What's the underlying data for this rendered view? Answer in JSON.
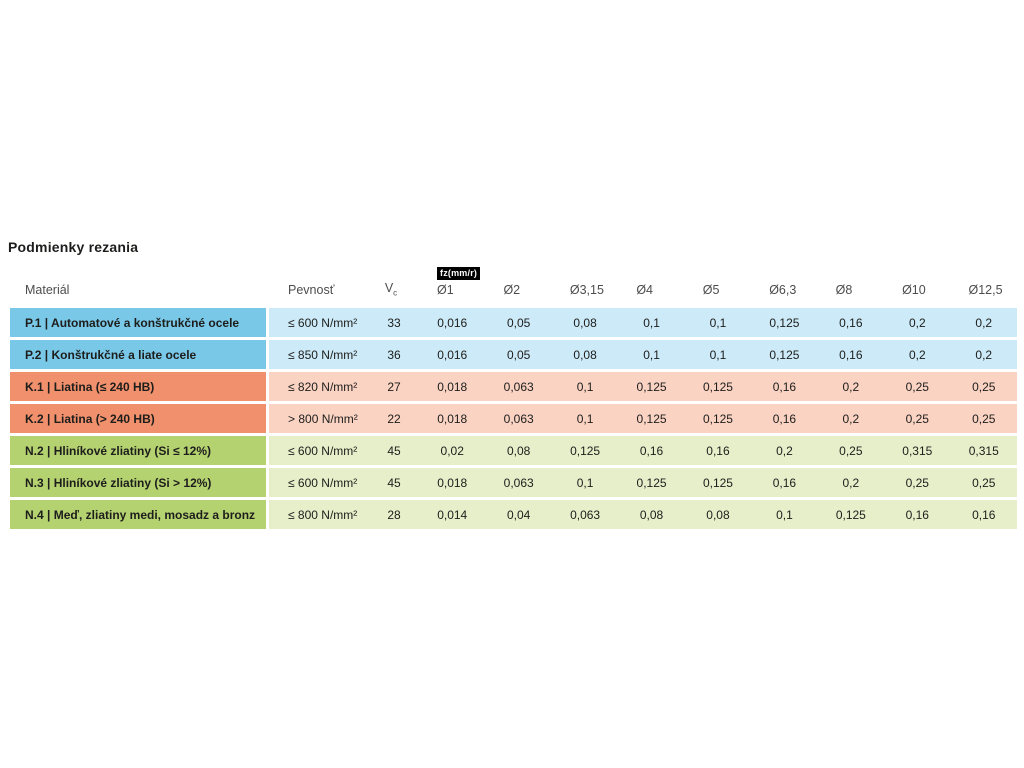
{
  "page": {
    "title": "Podmienky rezania"
  },
  "table": {
    "columns": {
      "material": "Materiál",
      "strength": "Pevnosť",
      "vc_main": "V",
      "vc_sub": "c",
      "fz_badge": "fz(mm/r)",
      "diameters": [
        "Ø1",
        "Ø2",
        "Ø3,15",
        "Ø4",
        "Ø5",
        "Ø6,3",
        "Ø8",
        "Ø10",
        "Ø12,5"
      ]
    },
    "rows": [
      {
        "group": "steel",
        "material": "P.1 | Automatové a konštrukčné ocele",
        "strength": "≤ 600 N/mm²",
        "vc": "33",
        "fz": [
          "0,016",
          "0,05",
          "0,08",
          "0,1",
          "0,1",
          "0,125",
          "0,16",
          "0,2",
          "0,2"
        ]
      },
      {
        "group": "steel",
        "material": "P.2 | Konštrukčné a liate ocele",
        "strength": "≤ 850 N/mm²",
        "vc": "36",
        "fz": [
          "0,016",
          "0,05",
          "0,08",
          "0,1",
          "0,1",
          "0,125",
          "0,16",
          "0,2",
          "0,2"
        ]
      },
      {
        "group": "cast-iron",
        "material": "K.1 | Liatina (≤ 240 HB)",
        "strength": "≤ 820 N/mm²",
        "vc": "27",
        "fz": [
          "0,018",
          "0,063",
          "0,1",
          "0,125",
          "0,125",
          "0,16",
          "0,2",
          "0,25",
          "0,25"
        ]
      },
      {
        "group": "cast-iron",
        "material": "K.2 | Liatina (> 240 HB)",
        "strength": "> 800 N/mm²",
        "vc": "22",
        "fz": [
          "0,018",
          "0,063",
          "0,1",
          "0,125",
          "0,125",
          "0,16",
          "0,2",
          "0,25",
          "0,25"
        ]
      },
      {
        "group": "non-ferrous",
        "material": "N.2 | Hliníkové zliatiny (Si ≤ 12%)",
        "strength": "≤ 600 N/mm²",
        "vc": "45",
        "fz": [
          "0,02",
          "0,08",
          "0,125",
          "0,16",
          "0,16",
          "0,2",
          "0,25",
          "0,315",
          "0,315"
        ]
      },
      {
        "group": "non-ferrous",
        "material": "N.3 | Hliníkové zliatiny (Si > 12%)",
        "strength": "≤ 600 N/mm²",
        "vc": "45",
        "fz": [
          "0,018",
          "0,063",
          "0,1",
          "0,125",
          "0,125",
          "0,16",
          "0,2",
          "0,25",
          "0,25"
        ]
      },
      {
        "group": "non-ferrous",
        "material": "N.4 | Meď, zliatiny medi, mosadz a bronz",
        "strength": "≤ 800 N/mm²",
        "vc": "28",
        "fz": [
          "0,014",
          "0,04",
          "0,063",
          "0,08",
          "0,08",
          "0,1",
          "0,125",
          "0,16",
          "0,16"
        ]
      }
    ]
  },
  "colors": {
    "steel_dark": "#79c8e8",
    "steel_light": "#cdeaf8",
    "cast_iron_dark": "#f0906c",
    "cast_iron_light": "#fad3c3",
    "non_ferrous_dark": "#b5d271",
    "non_ferrous_light": "#e6efca",
    "badge_bg": "#000000",
    "badge_text": "#ffffff",
    "header_text": "#4d4d4d",
    "cell_text": "#1d1d1b",
    "background": "#ffffff"
  }
}
